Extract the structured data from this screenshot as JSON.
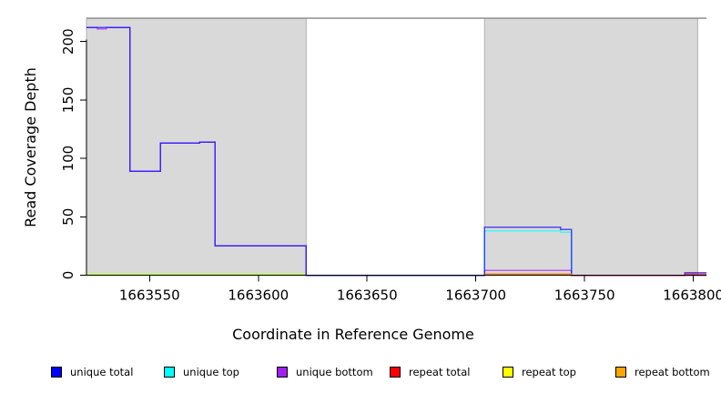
{
  "chart_data": {
    "type": "line",
    "subtype": "step-coverage",
    "title": "",
    "xlabel": "Coordinate in Reference Genome",
    "ylabel": "Read Coverage Depth",
    "xlim": [
      1663521,
      1663806
    ],
    "ylim": [
      0,
      220
    ],
    "x_ticks": [
      1663550,
      1663600,
      1663650,
      1663700,
      1663750,
      1663800
    ],
    "y_ticks": [
      0,
      50,
      100,
      150,
      200
    ],
    "grid": false,
    "legend_position": "bottom",
    "plot_bg": "#ffffff",
    "region_fill": "#d9d9d9",
    "region_border": "#b3b3b3",
    "top_border_color": "#8f8f8f",
    "axis_color": "#000000",
    "background_regions": [
      {
        "name": "shaded-region-left",
        "x0": 1663521,
        "x1": 1663622
      },
      {
        "name": "shaded-region-right",
        "x0": 1663704,
        "x1": 1663802
      }
    ],
    "series": [
      {
        "name": "unique total",
        "color": "#0000ff",
        "draw_order": 4,
        "segments": [
          [
            [
              1663521,
              212
            ],
            [
              1663541,
              89
            ],
            [
              1663555,
              113
            ],
            [
              1663573,
              114
            ],
            [
              1663580,
              25
            ],
            [
              1663622,
              0
            ],
            [
              1663704,
              41
            ],
            [
              1663739,
              39
            ],
            [
              1663744,
              0
            ],
            [
              1663796,
              2
            ],
            [
              1663806,
              2
            ]
          ]
        ]
      },
      {
        "name": "unique top",
        "color": "#00ffff",
        "draw_order": 1,
        "segments": [
          [
            [
              1663521,
              1
            ],
            [
              1663622,
              0
            ],
            [
              1663704,
              38
            ],
            [
              1663739,
              37
            ],
            [
              1663744,
              0
            ],
            [
              1663806,
              0
            ]
          ]
        ]
      },
      {
        "name": "unique bottom",
        "color": "#a020f0",
        "draw_order": 3,
        "segments": [
          [
            [
              1663521,
              212
            ],
            [
              1663526,
              211
            ],
            [
              1663530,
              212
            ],
            [
              1663541,
              89
            ],
            [
              1663555,
              113
            ],
            [
              1663573,
              114
            ],
            [
              1663580,
              25
            ],
            [
              1663622,
              0
            ],
            [
              1663704,
              4
            ],
            [
              1663744,
              0
            ],
            [
              1663806,
              0
            ]
          ]
        ]
      },
      {
        "name": "repeat total",
        "color": "#ff0000",
        "draw_order": 5,
        "segments": [
          [
            [
              1663704,
              1
            ],
            [
              1663744,
              0
            ],
            [
              1663796,
              1
            ],
            [
              1663806,
              1
            ]
          ]
        ]
      },
      {
        "name": "repeat top",
        "color": "#ffff00",
        "draw_order": 2,
        "segments": [
          [
            [
              1663521,
              1
            ],
            [
              1663622,
              0
            ]
          ]
        ]
      },
      {
        "name": "repeat bottom",
        "color": "#ffa500",
        "draw_order": 6,
        "segments": [
          [
            [
              1663704,
              1
            ],
            [
              1663744,
              0
            ]
          ]
        ]
      }
    ]
  },
  "legend": {
    "items": [
      {
        "label": "unique total",
        "color": "#0000ff"
      },
      {
        "label": "unique top",
        "color": "#00ffff"
      },
      {
        "label": "unique bottom",
        "color": "#a020f0"
      },
      {
        "label": "repeat total",
        "color": "#ff0000"
      },
      {
        "label": "repeat top",
        "color": "#ffff00"
      },
      {
        "label": "repeat bottom",
        "color": "#ffa500"
      }
    ]
  }
}
